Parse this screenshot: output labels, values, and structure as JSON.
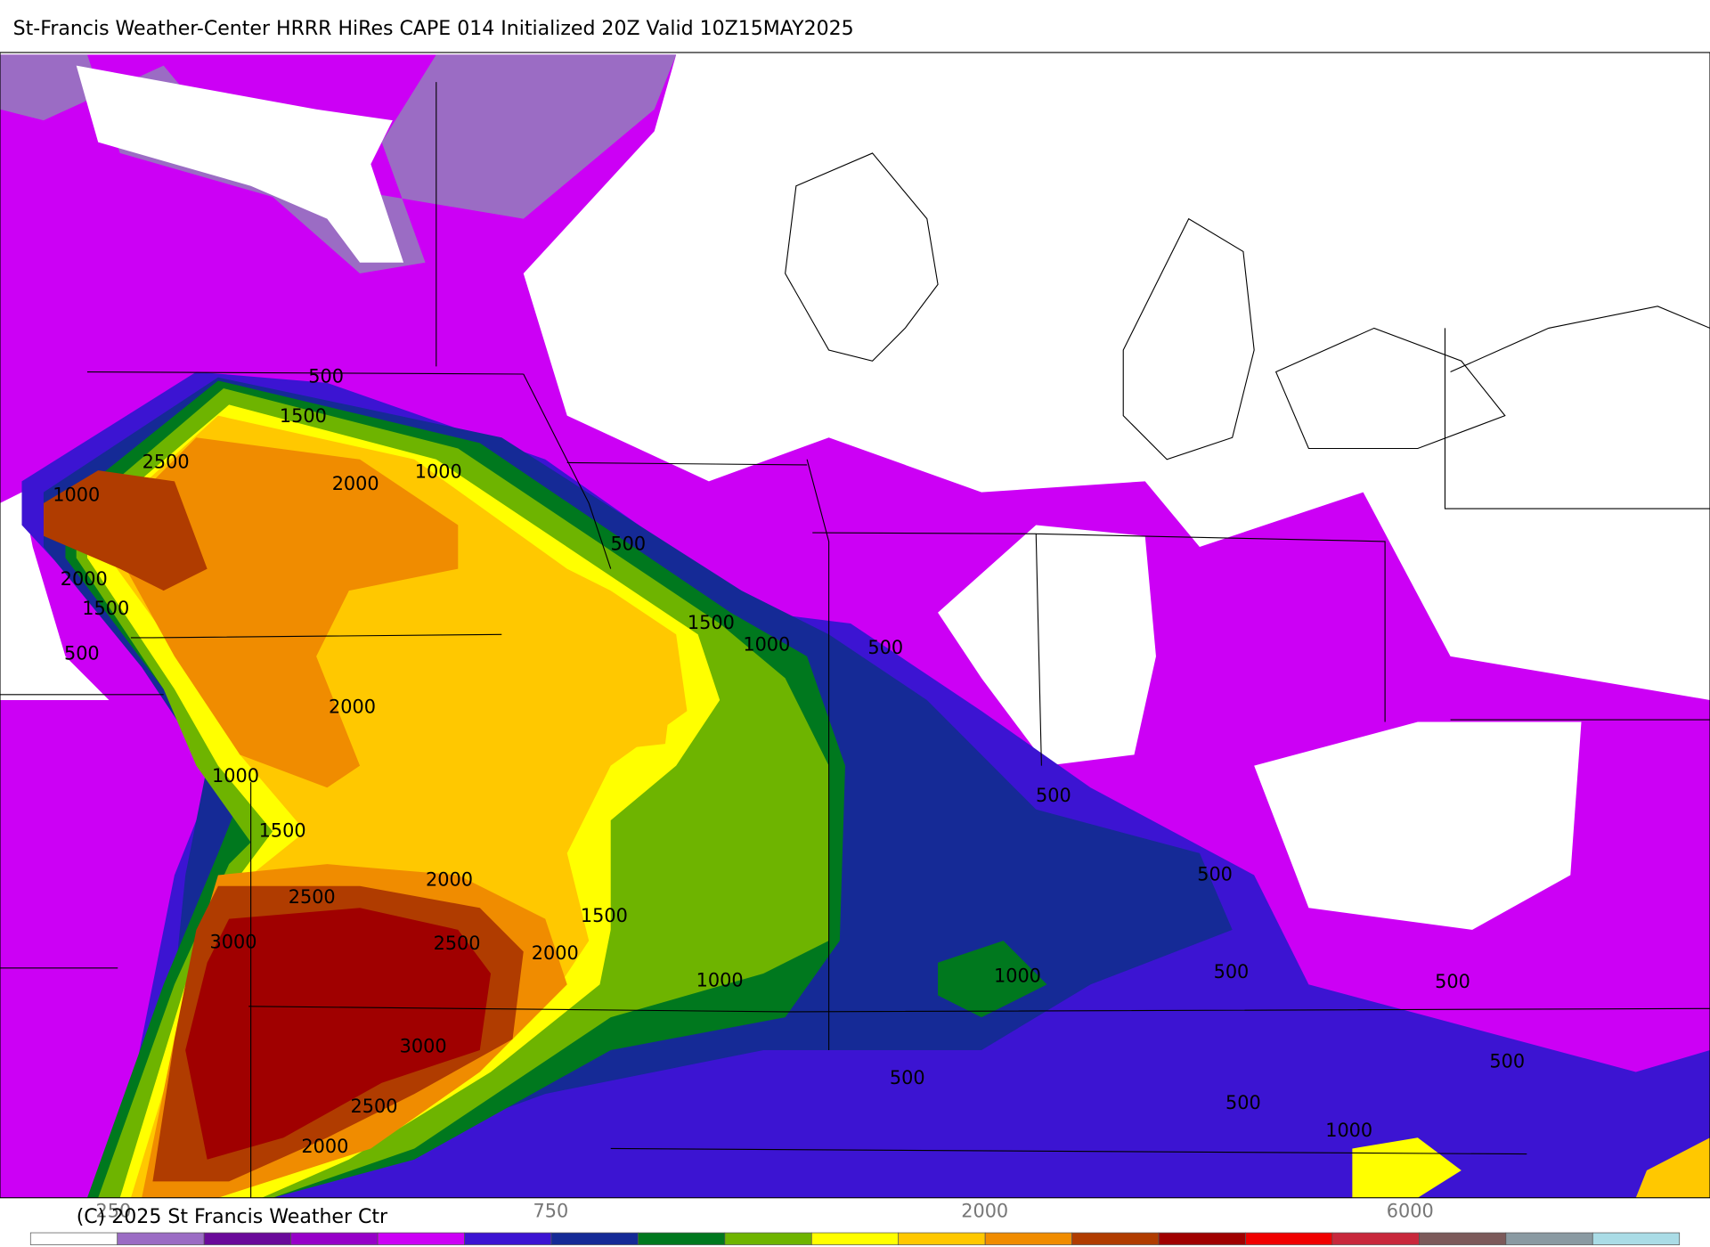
{
  "header": {
    "title": "St-Francis Weather-Center HRRR HiRes CAPE  014 Initialized  20Z Valid 10Z15MAY2025"
  },
  "contour_labels": [
    "500",
    "1500",
    "2500",
    "2000",
    "1000",
    "1000",
    "500",
    "2000",
    "1500",
    "500",
    "1500",
    "1000",
    "500",
    "2000",
    "1000",
    "1500",
    "2000",
    "2500",
    "1500",
    "3000",
    "2500",
    "2000",
    "1000",
    "1000",
    "500",
    "500",
    "500",
    "500",
    "3000",
    "500",
    "500",
    "500",
    "2500",
    "1000",
    "2000"
  ],
  "colorbar": {
    "colors": [
      "#ffffff",
      "#9b6cc4",
      "#6a0a9a",
      "#9600c8",
      "#cc00f5",
      "#3c14d2",
      "#152a96",
      "#00781e",
      "#6eb400",
      "#ffff00",
      "#ffc800",
      "#f08c00",
      "#b03c00",
      "#a00000",
      "#f00000",
      "#c8283c",
      "#7c5a5a",
      "#8a9aa2",
      "#aadce6"
    ],
    "labels": [
      "250",
      "750",
      "2000",
      "6000"
    ]
  },
  "copyright": "(C) 2025 St Francis Weather Ctr"
}
